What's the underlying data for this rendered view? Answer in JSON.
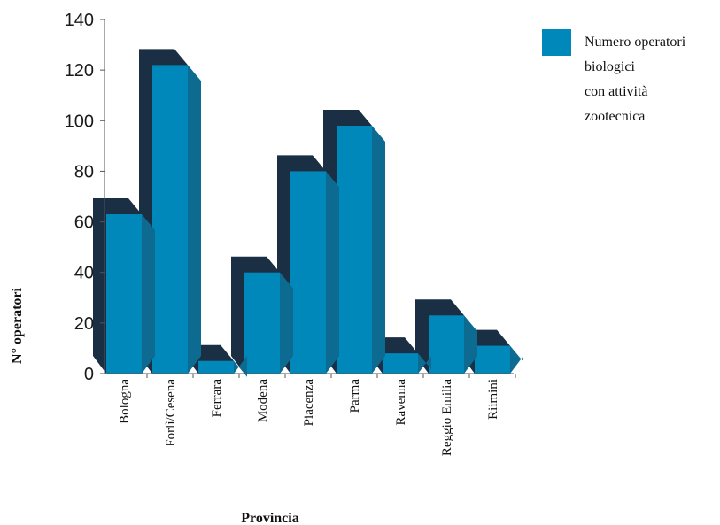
{
  "chart_data": {
    "type": "bar",
    "title": "",
    "xlabel": "Provincia",
    "ylabel": "N° operatori",
    "ylim": [
      0,
      140
    ],
    "yticks": [
      0,
      20,
      40,
      60,
      80,
      100,
      120,
      140
    ],
    "categories": [
      "Bologna",
      "Forlì/Cesena",
      "Ferrara",
      "Modena",
      "Piacenza",
      "Parma",
      "Ravenna",
      "Reggio Emilia",
      "Riimini"
    ],
    "series": [
      {
        "name": "Numero operatori biologici con attività zootecnica",
        "values": [
          63,
          122,
          5,
          40,
          80,
          98,
          8,
          23,
          11
        ]
      }
    ],
    "legend": {
      "position": "top-right",
      "lines": [
        "Numero operatori",
        "biologici",
        "con attività",
        "zootecnica"
      ]
    },
    "grid": false,
    "colors": {
      "bar_front": "#0088bb",
      "bar_side": "#0d6a91",
      "bar_shadow": "#1b2f44",
      "axis": "#555555"
    }
  }
}
